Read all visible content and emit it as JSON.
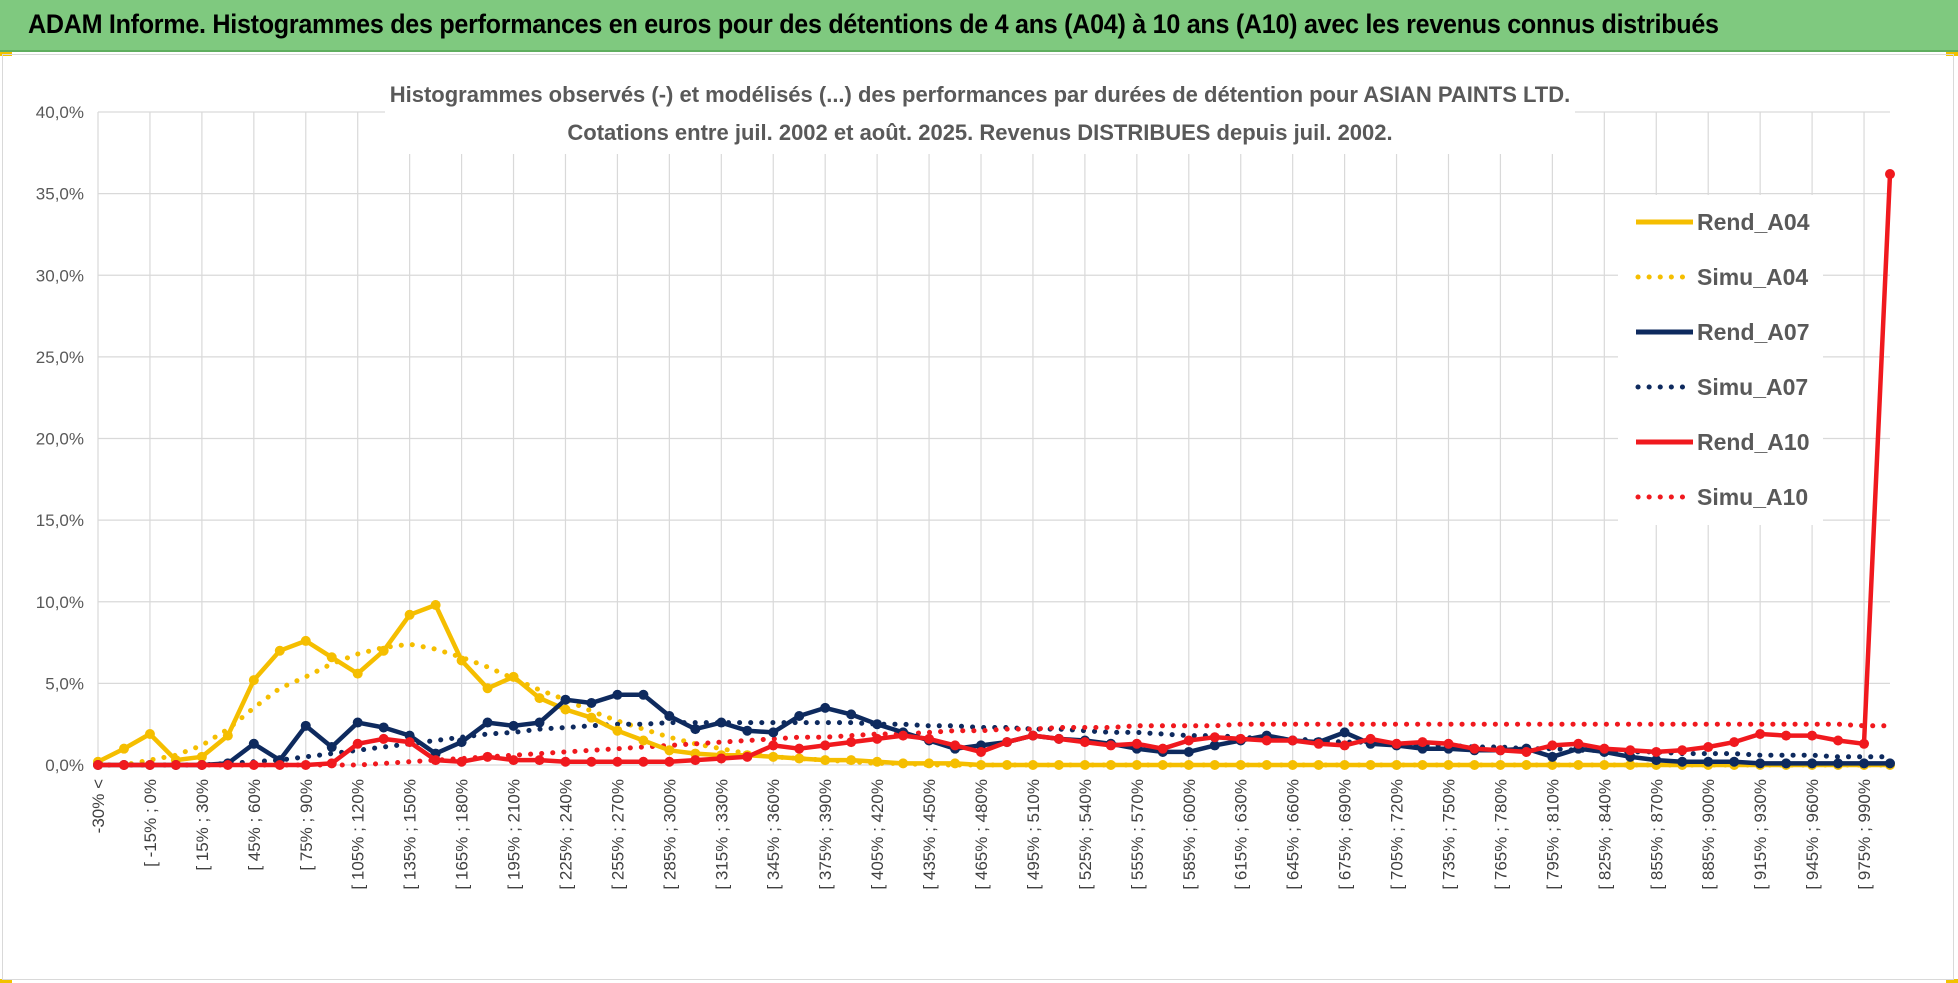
{
  "header": {
    "title": "ADAM Informe. Histogrammes des performances en euros pour des détentions de 4 ans (A04) à 10 ans (A10) avec les revenus connus distribués"
  },
  "colors": {
    "banner": "#7fc97f",
    "a04": "#f5be00",
    "a07": "#0e2a5e",
    "a10": "#f0191e",
    "grid": "#d9d9d9"
  },
  "chart_data": {
    "type": "line",
    "title_line1": "Histogrammes observés (-) et modélisés (...) des performances par durées de détention pour ASIAN PAINTS LTD.",
    "title_line2": "Cotations entre juil. 2002 et août. 2025. Revenus DISTRIBUES depuis juil. 2002.",
    "xlabel": "",
    "ylabel": "",
    "ylim": [
      0,
      40
    ],
    "y_ticks": [
      "0,0%",
      "5,0%",
      "10,0%",
      "15,0%",
      "20,0%",
      "25,0%",
      "30,0%",
      "35,0%",
      "40,0%"
    ],
    "grid": true,
    "legend_position": "top-right",
    "x_tick_labels": [
      "-30% <",
      "[ -15% ; 0%",
      "[ 15% ; 30%",
      "[ 45% ; 60%",
      "[ 75% ; 90%",
      "[ 105% ; 120%",
      "[ 135% ; 150%",
      "[ 165% ; 180%",
      "[ 195% ; 210%",
      "[ 225% ; 240%",
      "[ 255% ; 270%",
      "[ 285% ; 300%",
      "[ 315% ; 330%",
      "[ 345% ; 360%",
      "[ 375% ; 390%",
      "[ 405% ; 420%",
      "[ 435% ; 450%",
      "[ 465% ; 480%",
      "[ 495% ; 510%",
      "[ 525% ; 540%",
      "[ 555% ; 570%",
      "[ 585% ; 600%",
      "[ 615% ; 630%",
      "[ 645% ; 660%",
      "[ 675% ; 690%",
      "[ 705% ; 720%",
      "[ 735% ; 750%",
      "[ 765% ; 780%",
      "[ 795% ; 810%",
      "[ 825% ; 840%",
      "[ 855% ; 870%",
      "[ 885% ; 900%",
      "[ 915% ; 930%",
      "[ 945% ; 960%",
      "[ 975% ; 990%"
    ],
    "series": [
      {
        "name": "Rend_A04",
        "style": "solid",
        "color": "#f5be00",
        "values": [
          0.2,
          1.0,
          1.9,
          0.3,
          0.5,
          1.8,
          5.2,
          7.0,
          7.6,
          6.6,
          5.6,
          7.0,
          9.2,
          9.8,
          6.4,
          4.7,
          5.4,
          4.1,
          3.4,
          2.9,
          2.1,
          1.5,
          0.9,
          0.7,
          0.6,
          0.6,
          0.5,
          0.4,
          0.3,
          0.3,
          0.2,
          0.1,
          0.1,
          0.1,
          0,
          0,
          0,
          0,
          0,
          0,
          0,
          0,
          0,
          0,
          0,
          0,
          0,
          0,
          0,
          0,
          0,
          0,
          0,
          0,
          0,
          0,
          0,
          0,
          0,
          0,
          0,
          0,
          0,
          0,
          0,
          0,
          0,
          0,
          0,
          0
        ]
      },
      {
        "name": "Simu_A04",
        "style": "dotted",
        "color": "#f5be00",
        "values": [
          0,
          0,
          0.3,
          0.6,
          1.2,
          2.2,
          3.5,
          4.7,
          5.4,
          6.2,
          6.8,
          7.2,
          7.4,
          7.1,
          6.6,
          6.0,
          5.3,
          4.6,
          4.0,
          3.3,
          2.7,
          2.2,
          1.7,
          1.3,
          1.0,
          0.7,
          0.5,
          0.4,
          0.3,
          0.2,
          0.1,
          0.1,
          0,
          0,
          0,
          0,
          0,
          0,
          0,
          0,
          0,
          0,
          0,
          0,
          0,
          0,
          0,
          0,
          0,
          0,
          0,
          0,
          0,
          0,
          0,
          0,
          0,
          0,
          0,
          0,
          0,
          0,
          0,
          0,
          0,
          0,
          0,
          0,
          0,
          0
        ]
      },
      {
        "name": "Rend_A07",
        "style": "solid",
        "color": "#0e2a5e",
        "values": [
          0,
          0,
          0,
          0,
          0,
          0.1,
          1.3,
          0.3,
          2.4,
          1.1,
          2.6,
          2.3,
          1.8,
          0.7,
          1.4,
          2.6,
          2.4,
          2.6,
          4.0,
          3.8,
          4.3,
          4.3,
          3.0,
          2.2,
          2.6,
          2.1,
          2.0,
          3.0,
          3.5,
          3.1,
          2.5,
          2.0,
          1.5,
          1.0,
          1.2,
          1.4,
          1.8,
          1.6,
          1.5,
          1.3,
          1.0,
          0.8,
          0.8,
          1.2,
          1.5,
          1.8,
          1.5,
          1.4,
          2.0,
          1.3,
          1.2,
          1.0,
          1.0,
          0.9,
          0.9,
          1.0,
          0.5,
          1.0,
          0.8,
          0.5,
          0.3,
          0.2,
          0.2,
          0.2,
          0.1,
          0.1,
          0.1,
          0.1,
          0.1,
          0.1
        ]
      },
      {
        "name": "Simu_A07",
        "style": "dotted",
        "color": "#0e2a5e",
        "values": [
          0,
          0,
          0,
          0,
          0,
          0.1,
          0.2,
          0.3,
          0.5,
          0.7,
          0.9,
          1.1,
          1.3,
          1.5,
          1.7,
          1.9,
          2.0,
          2.2,
          2.3,
          2.4,
          2.5,
          2.5,
          2.6,
          2.6,
          2.6,
          2.6,
          2.6,
          2.6,
          2.6,
          2.6,
          2.5,
          2.5,
          2.4,
          2.4,
          2.3,
          2.3,
          2.2,
          2.2,
          2.1,
          2.0,
          2.0,
          1.9,
          1.8,
          1.8,
          1.7,
          1.6,
          1.6,
          1.5,
          1.4,
          1.4,
          1.3,
          1.2,
          1.2,
          1.1,
          1.1,
          1.0,
          1.0,
          0.9,
          0.9,
          0.8,
          0.8,
          0.7,
          0.7,
          0.7,
          0.6,
          0.6,
          0.6,
          0.5,
          0.5,
          0.5
        ]
      },
      {
        "name": "Rend_A10",
        "style": "solid",
        "color": "#f0191e",
        "values": [
          0,
          0,
          0,
          0,
          0,
          0,
          0,
          0,
          0,
          0.1,
          1.3,
          1.6,
          1.4,
          0.3,
          0.2,
          0.5,
          0.3,
          0.3,
          0.2,
          0.2,
          0.2,
          0.2,
          0.2,
          0.3,
          0.4,
          0.5,
          1.2,
          1.0,
          1.2,
          1.4,
          1.6,
          1.8,
          1.6,
          1.2,
          0.8,
          1.4,
          1.8,
          1.6,
          1.4,
          1.2,
          1.3,
          1.0,
          1.5,
          1.7,
          1.6,
          1.5,
          1.5,
          1.3,
          1.2,
          1.6,
          1.3,
          1.4,
          1.3,
          1.0,
          0.9,
          0.8,
          1.2,
          1.3,
          1.0,
          0.9,
          0.8,
          0.9,
          1.1,
          1.4,
          1.9,
          1.8,
          1.8,
          1.5,
          1.3,
          36.2
        ]
      },
      {
        "name": "Simu_A10",
        "style": "dotted",
        "color": "#f0191e",
        "values": [
          0,
          0,
          0,
          0,
          0,
          0,
          0,
          0,
          0,
          0,
          0,
          0.1,
          0.2,
          0.3,
          0.4,
          0.5,
          0.6,
          0.7,
          0.8,
          0.9,
          1.0,
          1.1,
          1.2,
          1.3,
          1.4,
          1.5,
          1.6,
          1.7,
          1.7,
          1.8,
          1.9,
          1.9,
          2.0,
          2.1,
          2.1,
          2.2,
          2.2,
          2.3,
          2.3,
          2.3,
          2.4,
          2.4,
          2.4,
          2.4,
          2.5,
          2.5,
          2.5,
          2.5,
          2.5,
          2.5,
          2.5,
          2.5,
          2.5,
          2.5,
          2.5,
          2.5,
          2.5,
          2.5,
          2.5,
          2.5,
          2.5,
          2.5,
          2.5,
          2.5,
          2.5,
          2.5,
          2.5,
          2.5,
          2.4,
          2.4
        ]
      }
    ]
  }
}
